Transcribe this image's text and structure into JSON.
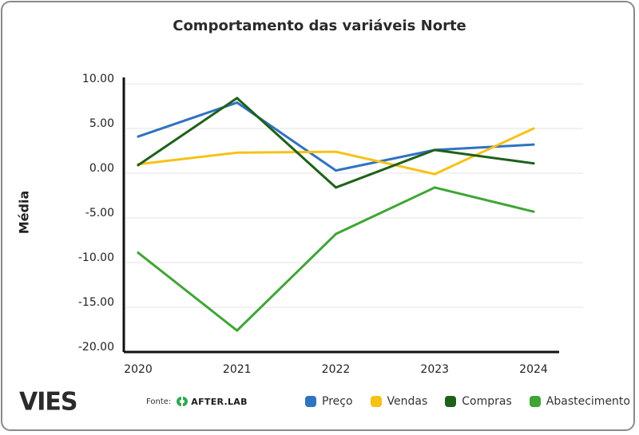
{
  "chart_data": {
    "type": "line",
    "title": "Comportamento das variáveis Norte",
    "xlabel": "",
    "ylabel": "Média",
    "categories": [
      "2020",
      "2021",
      "2022",
      "2023",
      "2024"
    ],
    "ylim": [
      -20,
      10
    ],
    "yticks": [
      "10.00",
      "5.00",
      "0.00",
      "-5.00",
      "-10.00",
      "-15.00",
      "-20.00"
    ],
    "ytick_values": [
      10,
      5,
      0,
      -5,
      -10,
      -15,
      -20
    ],
    "grid": true,
    "legend_position": "bottom-right",
    "series": [
      {
        "name": "Preço",
        "color": "#2f73c1",
        "values": [
          4.1,
          7.9,
          0.3,
          2.6,
          3.2
        ]
      },
      {
        "name": "Vendas",
        "color": "#f6c217",
        "values": [
          1.0,
          2.3,
          2.4,
          -0.1,
          5.0
        ]
      },
      {
        "name": "Compras",
        "color": "#1e6119",
        "values": [
          0.9,
          8.4,
          -1.6,
          2.6,
          1.1
        ]
      },
      {
        "name": "Abastecimento",
        "color": "#3fa535",
        "values": [
          -8.9,
          -17.6,
          -6.8,
          -1.6,
          -4.3
        ]
      }
    ]
  },
  "footer": {
    "logo_text": "VIES",
    "source_label": "Fonte:",
    "source_brand": "AFTER.LAB"
  },
  "colors": {
    "axis": "#111111",
    "grid": "#e3e3e3",
    "brand_green": "#2fa84f"
  }
}
